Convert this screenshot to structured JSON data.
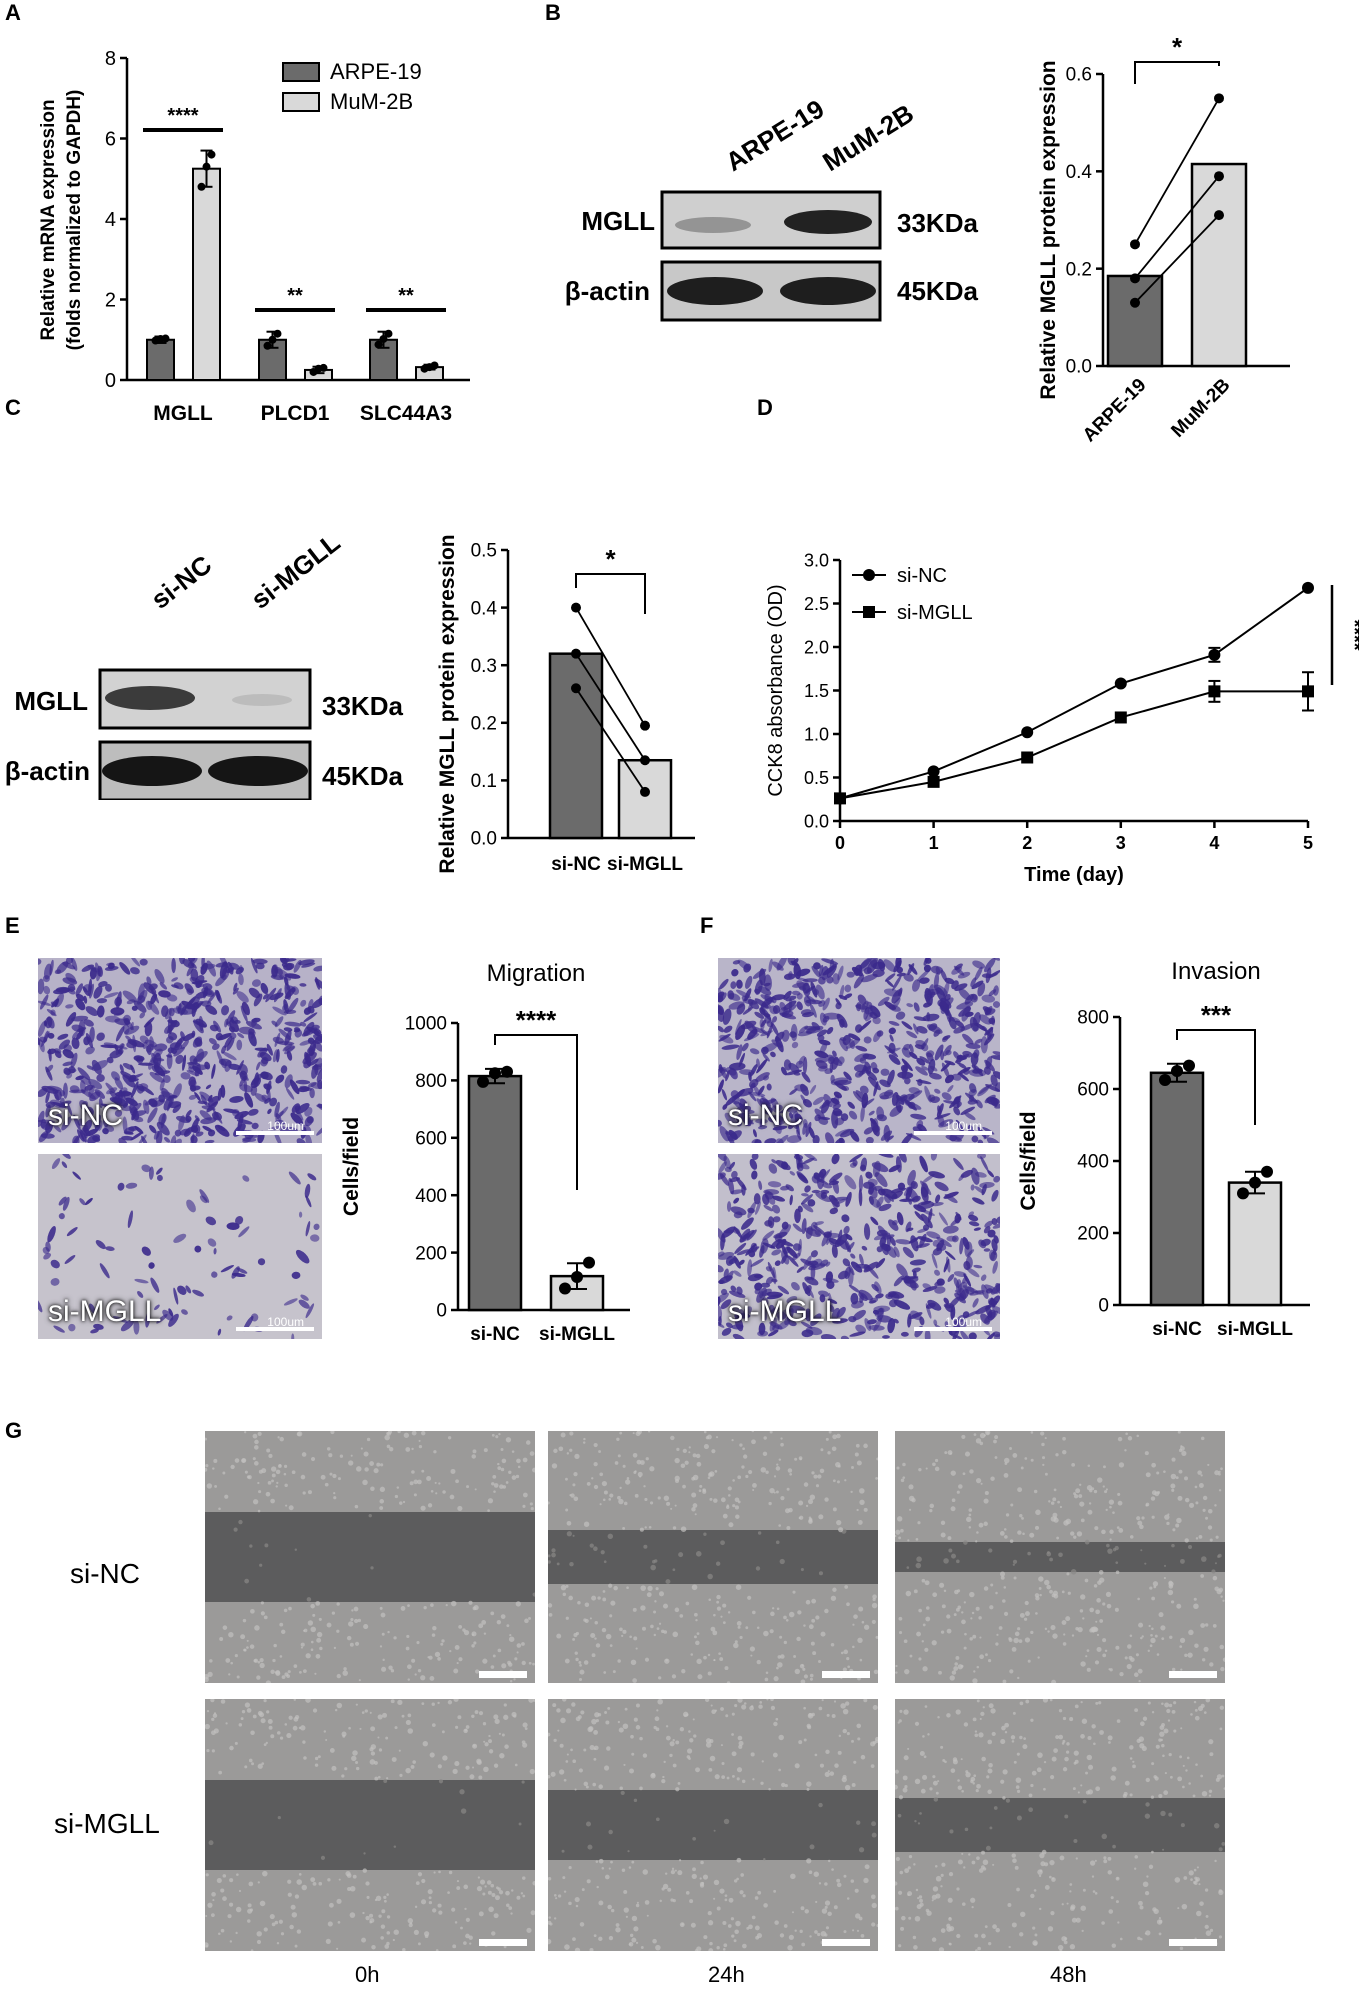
{
  "panel_letters": {
    "a": "A",
    "b": "B",
    "c": "C",
    "d": "D",
    "e": "E",
    "f": "F",
    "g": "G"
  },
  "blots": {
    "b": {
      "lanes": [
        "ARPE-19",
        "MuM-2B"
      ],
      "rows": [
        "MGLL",
        "β-actin"
      ],
      "sizes": [
        "33KDa",
        "45KDa"
      ]
    },
    "c": {
      "lanes": [
        "si-NC",
        "si-MGLL"
      ],
      "rows": [
        "MGLL",
        "β-actin"
      ],
      "sizes": [
        "33KDa",
        "45KDa"
      ]
    }
  },
  "micrographs": {
    "e": {
      "labels": [
        "si-NC",
        "si-MGLL"
      ],
      "scale": "100um",
      "stain": "#3b2a8c"
    },
    "f": {
      "labels": [
        "si-NC",
        "si-MGLL"
      ],
      "scale": "100um",
      "stain": "#3b2a8c"
    }
  },
  "wound": {
    "rows": [
      "si-NC",
      "si-MGLL"
    ],
    "times": [
      "0h",
      "24h",
      "48h"
    ],
    "gap_fraction": [
      [
        1.0,
        0.55,
        0.25
      ],
      [
        1.0,
        0.75,
        0.55
      ]
    ]
  },
  "colors": {
    "dark": "#6b6b6b",
    "light": "#d9d9d9"
  },
  "chart_data": [
    {
      "id": "A",
      "type": "bar",
      "categories": [
        "MGLL",
        "PLCD1",
        "SLC44A3"
      ],
      "series": [
        {
          "name": "ARPE-19",
          "values": [
            1.0,
            1.0,
            1.0
          ],
          "errors": [
            0.08,
            0.2,
            0.2
          ],
          "points": [
            [
              0.98,
              1.02,
              1.03
            ],
            [
              0.85,
              1.0,
              1.15
            ],
            [
              0.88,
              1.02,
              1.15
            ]
          ]
        },
        {
          "name": "MuM-2B",
          "values": [
            5.25,
            0.25,
            0.32
          ],
          "errors": [
            0.45,
            0.08,
            0.06
          ],
          "points": [
            [
              4.8,
              5.3,
              5.6
            ],
            [
              0.2,
              0.28,
              0.3
            ],
            [
              0.28,
              0.32,
              0.36
            ]
          ]
        }
      ],
      "ylabel_lines": [
        "Relative mRNA expression",
        "(folds normalized to GAPDH)"
      ],
      "ylim": [
        0,
        8
      ],
      "yticks": [
        0,
        2,
        4,
        6,
        8
      ],
      "significance": [
        "****",
        "**",
        "**"
      ],
      "legend": "top-right"
    },
    {
      "id": "B",
      "type": "bar",
      "categories": [
        "ARPE-19",
        "MuM-2B"
      ],
      "values": [
        0.185,
        0.415
      ],
      "paired_points": [
        [
          0.25,
          0.55
        ],
        [
          0.18,
          0.39
        ],
        [
          0.13,
          0.31
        ]
      ],
      "ylabel": "Relative MGLL protein expression",
      "ylim": [
        0,
        0.6
      ],
      "yticks": [
        "0.0",
        "0.2",
        "0.4",
        "0.6"
      ],
      "significance": "*"
    },
    {
      "id": "C",
      "type": "bar",
      "categories": [
        "si-NC",
        "si-MGLL"
      ],
      "values": [
        0.32,
        0.135
      ],
      "paired_points": [
        [
          0.4,
          0.195
        ],
        [
          0.32,
          0.135
        ],
        [
          0.26,
          0.08
        ]
      ],
      "ylabel": "Relative MGLL protein expression",
      "ylim": [
        0,
        0.5
      ],
      "yticks": [
        "0.0",
        "0.1",
        "0.2",
        "0.3",
        "0.4",
        "0.5"
      ],
      "significance": "*"
    },
    {
      "id": "D",
      "type": "line",
      "x": [
        0,
        1,
        2,
        3,
        4,
        5
      ],
      "series": [
        {
          "name": "si-NC",
          "marker": "circle",
          "values": [
            0.26,
            0.57,
            1.02,
            1.58,
            1.91,
            2.68
          ],
          "errors": [
            0.02,
            0.02,
            0.02,
            0.03,
            0.08,
            0.03
          ]
        },
        {
          "name": "si-MGLL",
          "marker": "square",
          "values": [
            0.26,
            0.45,
            0.73,
            1.19,
            1.49,
            1.49
          ],
          "errors": [
            0.02,
            0.02,
            0.02,
            0.03,
            0.12,
            0.22
          ]
        }
      ],
      "xlabel": "Time (day)",
      "ylabel": "CCK8 absorbance (OD)",
      "ylim": [
        0,
        3.0
      ],
      "yticks": [
        "0.0",
        "0.5",
        "1.0",
        "1.5",
        "2.0",
        "2.5",
        "3.0"
      ],
      "significance": "****",
      "legend": "top-left"
    },
    {
      "id": "E",
      "type": "bar",
      "title": "Migration",
      "categories": [
        "si-NC",
        "si-MGLL"
      ],
      "values": [
        815,
        118
      ],
      "errors": [
        25,
        45
      ],
      "points": [
        [
          795,
          825,
          830
        ],
        [
          75,
          115,
          165
        ]
      ],
      "ylabel": "Cells/field",
      "ylim": [
        0,
        1000
      ],
      "yticks": [
        0,
        200,
        400,
        600,
        800,
        1000
      ],
      "significance": "****"
    },
    {
      "id": "F",
      "type": "bar",
      "title": "Invasion",
      "categories": [
        "si-NC",
        "si-MGLL"
      ],
      "values": [
        645,
        340
      ],
      "errors": [
        25,
        30
      ],
      "points": [
        [
          625,
          650,
          665
        ],
        [
          310,
          340,
          370
        ]
      ],
      "ylabel": "Cells/field",
      "ylim": [
        0,
        800
      ],
      "yticks": [
        0,
        200,
        400,
        600,
        800
      ],
      "significance": "***"
    }
  ]
}
